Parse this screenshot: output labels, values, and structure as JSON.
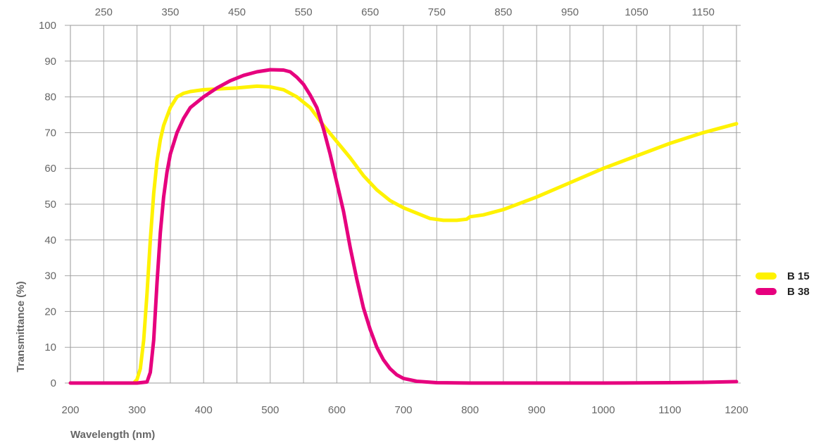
{
  "chart_data": {
    "type": "line",
    "title": "",
    "xlabel": "Wavelength (nm)",
    "ylabel": "Transmittance (%)",
    "xlim": [
      200,
      1200
    ],
    "ylim": [
      0,
      100
    ],
    "grid": true,
    "legend_position": "right",
    "x_ticks_bottom": [
      "200",
      "300",
      "400",
      "500",
      "600",
      "700",
      "800",
      "900",
      "1000",
      "1100",
      "1200"
    ],
    "x_ticks_top": [
      "250",
      "350",
      "450",
      "550",
      "650",
      "750",
      "850",
      "950",
      "1050",
      "1150"
    ],
    "y_ticks": [
      "0",
      "10",
      "20",
      "30",
      "40",
      "50",
      "60",
      "70",
      "80",
      "90",
      "100"
    ],
    "series": [
      {
        "name": "B 15",
        "color": "#fff200",
        "points": [
          [
            200,
            0
          ],
          [
            295,
            0
          ],
          [
            300,
            1
          ],
          [
            305,
            4
          ],
          [
            310,
            12
          ],
          [
            315,
            25
          ],
          [
            320,
            40
          ],
          [
            325,
            53
          ],
          [
            330,
            62
          ],
          [
            335,
            68
          ],
          [
            340,
            72
          ],
          [
            350,
            77
          ],
          [
            360,
            80
          ],
          [
            370,
            81
          ],
          [
            380,
            81.5
          ],
          [
            400,
            82
          ],
          [
            450,
            82.5
          ],
          [
            480,
            83
          ],
          [
            500,
            82.8
          ],
          [
            520,
            82
          ],
          [
            540,
            80
          ],
          [
            560,
            77
          ],
          [
            580,
            72
          ],
          [
            600,
            67.5
          ],
          [
            620,
            63
          ],
          [
            640,
            58
          ],
          [
            660,
            54
          ],
          [
            680,
            51
          ],
          [
            700,
            49
          ],
          [
            720,
            47.5
          ],
          [
            740,
            46
          ],
          [
            760,
            45.5
          ],
          [
            780,
            45.5
          ],
          [
            795,
            45.8
          ],
          [
            800,
            46.5
          ],
          [
            820,
            47
          ],
          [
            850,
            48.5
          ],
          [
            900,
            52
          ],
          [
            950,
            56
          ],
          [
            1000,
            60
          ],
          [
            1050,
            63.5
          ],
          [
            1100,
            67
          ],
          [
            1150,
            70
          ],
          [
            1200,
            72.5
          ]
        ]
      },
      {
        "name": "B 38",
        "color": "#e6007e",
        "points": [
          [
            200,
            0
          ],
          [
            300,
            0
          ],
          [
            315,
            0.3
          ],
          [
            320,
            3
          ],
          [
            325,
            12
          ],
          [
            330,
            28
          ],
          [
            335,
            42
          ],
          [
            340,
            52
          ],
          [
            345,
            59
          ],
          [
            350,
            64
          ],
          [
            360,
            70
          ],
          [
            370,
            74
          ],
          [
            380,
            77
          ],
          [
            400,
            80
          ],
          [
            420,
            82.5
          ],
          [
            440,
            84.5
          ],
          [
            460,
            86
          ],
          [
            480,
            87
          ],
          [
            500,
            87.6
          ],
          [
            520,
            87.5
          ],
          [
            530,
            87
          ],
          [
            540,
            85.5
          ],
          [
            550,
            83.5
          ],
          [
            560,
            80.5
          ],
          [
            570,
            77
          ],
          [
            580,
            71
          ],
          [
            590,
            64
          ],
          [
            600,
            56
          ],
          [
            610,
            48
          ],
          [
            620,
            38
          ],
          [
            630,
            29
          ],
          [
            640,
            21
          ],
          [
            650,
            15
          ],
          [
            660,
            10
          ],
          [
            670,
            6.5
          ],
          [
            680,
            4
          ],
          [
            690,
            2.3
          ],
          [
            700,
            1.3
          ],
          [
            720,
            0.5
          ],
          [
            750,
            0.1
          ],
          [
            800,
            0
          ],
          [
            900,
            0
          ],
          [
            1000,
            0
          ],
          [
            1100,
            0.1
          ],
          [
            1150,
            0.2
          ],
          [
            1200,
            0.4
          ]
        ]
      }
    ]
  }
}
